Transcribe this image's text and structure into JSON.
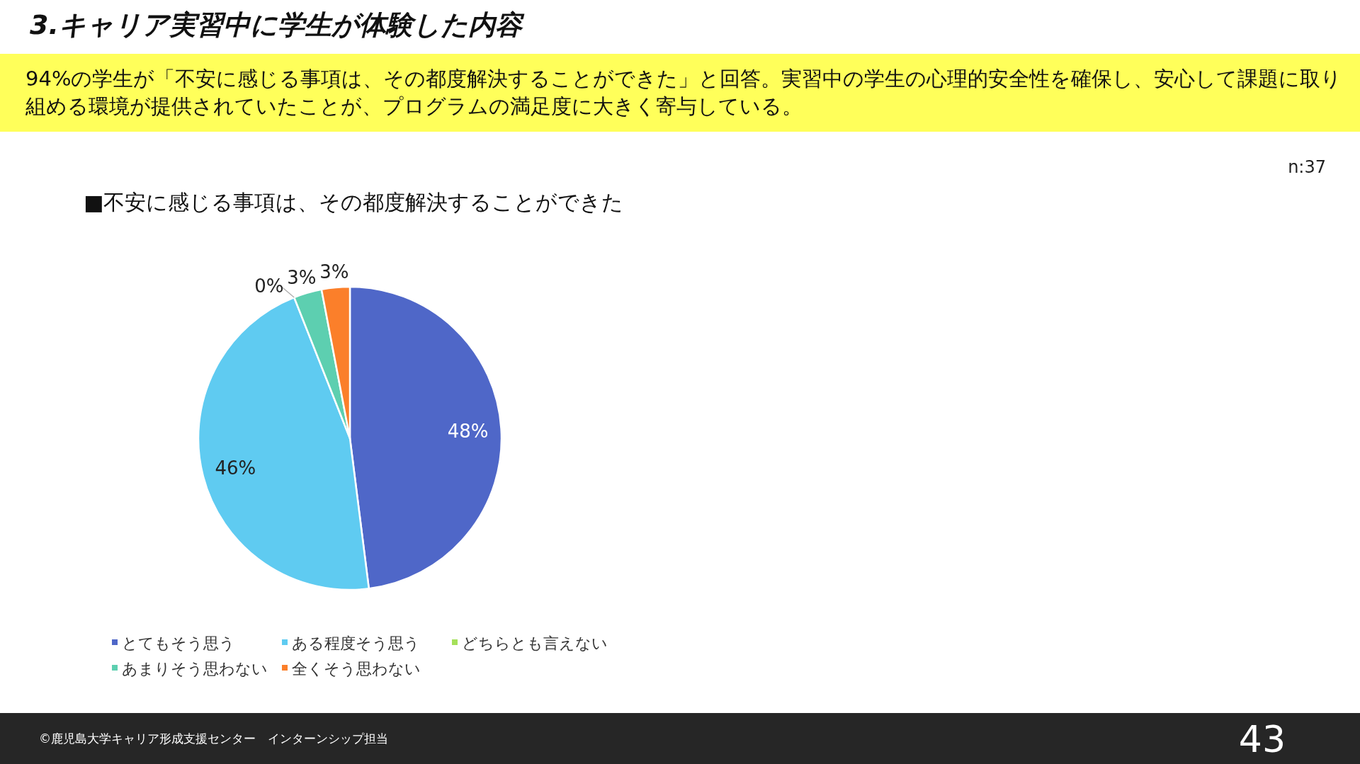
{
  "chart_data": {
    "type": "pie",
    "title": "■不安に感じる事項は、その都度解決することができた",
    "subtitle": "94%の学生が「不安に感じる事項は、その都度解決することができた」と回答。実習中の学生の心理的安全性を確保し、安心して課題に取り組める環境が提供されていたことが、プログラムの満足度に大きく寄与している。",
    "categories": [
      "とてもそう思う",
      "ある程度そう思う",
      "どちらとも言えない",
      "あまりそう思わない",
      "全くそう思わない"
    ],
    "values": [
      48,
      46,
      0,
      3,
      3
    ],
    "colors": [
      "#4f67c8",
      "#5fcbf1",
      "#a5e05a",
      "#5dcfb0",
      "#fb7f2a"
    ],
    "value_labels": [
      "48%",
      "46%",
      "0%",
      "3%",
      "3%"
    ],
    "legend": "bottom",
    "annotations": [
      "3.キャリア実習中に学生が体験した内容",
      "n:37",
      "©鹿児島大学キャリア形成支援センター　インターンシップ担当",
      "43"
    ]
  }
}
